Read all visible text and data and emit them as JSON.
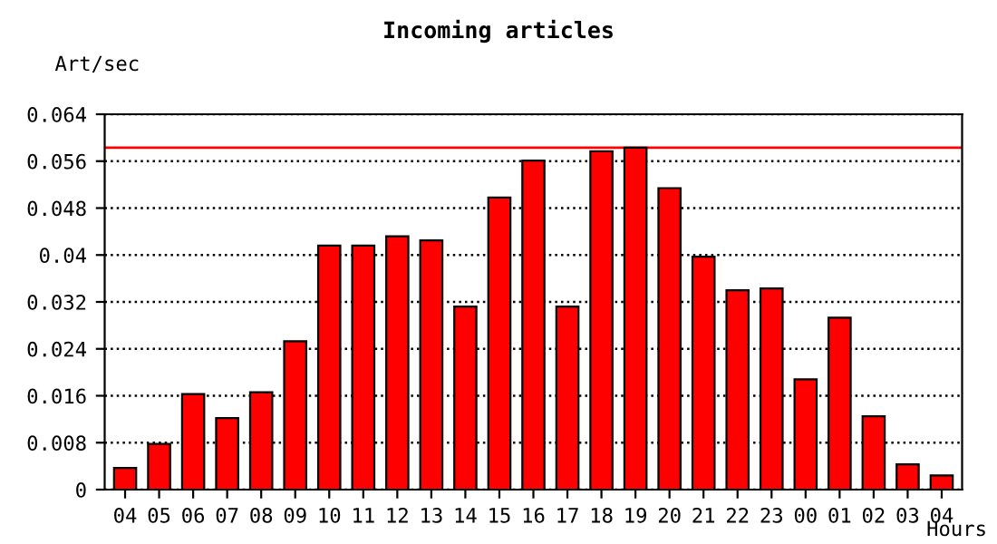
{
  "chart_data": {
    "type": "bar",
    "title": "Incoming articles",
    "ylabel": "Art/sec",
    "xlabel": "Hours",
    "categories": [
      "04",
      "05",
      "06",
      "07",
      "08",
      "09",
      "10",
      "11",
      "12",
      "13",
      "14",
      "15",
      "16",
      "17",
      "18",
      "19",
      "20",
      "21",
      "22",
      "23",
      "00",
      "01",
      "02",
      "03",
      "04"
    ],
    "values": [
      0.0037,
      0.0078,
      0.0163,
      0.0122,
      0.0166,
      0.0253,
      0.0416,
      0.0416,
      0.0432,
      0.0425,
      0.0312,
      0.0498,
      0.0561,
      0.0312,
      0.0577,
      0.0583,
      0.0514,
      0.0397,
      0.034,
      0.0343,
      0.0188,
      0.0293,
      0.0125,
      0.0043,
      0.0024
    ],
    "color": "#ff0000",
    "ylim": [
      0,
      0.064
    ],
    "yticks": [
      0,
      0.008,
      0.016,
      0.024,
      0.032,
      0.04,
      0.048,
      0.056,
      0.064
    ],
    "grid": "y",
    "line_style": "dotted",
    "ref_lines": [
      {
        "axis": "y",
        "value": 0.0583,
        "color": "#ff0000"
      }
    ]
  }
}
